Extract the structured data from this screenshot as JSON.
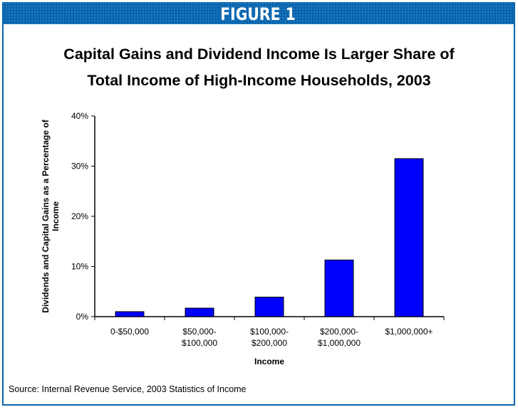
{
  "banner": {
    "title": "FIGURE 1"
  },
  "source": "Source: Internal Revenue Service, 2003 Statistics of Income",
  "colors": {
    "bar": "#0000ff",
    "banner": "#0a64ad"
  },
  "chart_data": {
    "type": "bar",
    "title": "Capital Gains and Dividend Income Is Larger Share of Total Income of High-Income Households, 2003",
    "title_lines": [
      "Capital Gains and Dividend Income Is Larger Share of",
      "Total Income of High-Income Households, 2003"
    ],
    "xlabel": "Income",
    "ylabel_lines": [
      "Dividends and Capital Gains as a Percentage of",
      "Income"
    ],
    "categories": [
      [
        "0-$50,000"
      ],
      [
        "$50,000-",
        "$100,000"
      ],
      [
        "$100,000-",
        "$200,000"
      ],
      [
        "$200,000-",
        "$1,000,000"
      ],
      [
        "$1,000,000+"
      ]
    ],
    "values": [
      1.0,
      1.7,
      3.9,
      11.3,
      31.5
    ],
    "ylim": [
      0,
      40
    ],
    "yticks": [
      0,
      10,
      20,
      30,
      40
    ],
    "ytick_labels": [
      "0%",
      "10%",
      "20%",
      "30%",
      "40%"
    ],
    "grid": false,
    "legend": "none"
  }
}
